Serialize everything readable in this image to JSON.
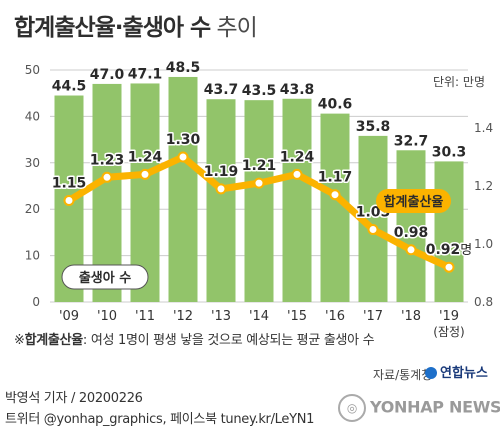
{
  "title": {
    "main": "합계출산율·출생아 수",
    "suffix": " 추이"
  },
  "unit_label": "단위: 만명",
  "note": {
    "prefix": "※",
    "term": "합계출산율",
    "text": ": 여성 1명이 평생 낳을 것으로 예상되는 평균 출생아 수"
  },
  "source": "자료/통계청",
  "credit": {
    "line1": "박영석 기자 / 20200226",
    "line2": "트위터 @yonhap_graphics, 페이스북 tuney.kr/LeYN1"
  },
  "logo": "연합뉴스",
  "watermark": "YONHAP NEWS",
  "colors": {
    "bar": "#92c46a",
    "line": "#fbb300",
    "point": "#ffffff",
    "grid": "#cccccc",
    "label_bg": "#fbb300"
  },
  "chart_data": {
    "type": "bar+line",
    "categories": [
      "'09",
      "'10",
      "'11",
      "'12",
      "'13",
      "'14",
      "'15",
      "'16",
      "'17",
      "'18",
      "'19"
    ],
    "category_note": "(잠정)",
    "series": [
      {
        "name": "출생아 수",
        "type": "bar",
        "axis": "left",
        "values": [
          44.5,
          47.0,
          47.1,
          48.5,
          43.7,
          43.5,
          43.8,
          40.6,
          35.8,
          32.7,
          30.3
        ],
        "labels": [
          "44.5",
          "47.0",
          "47.1",
          "48.5",
          "43.7",
          "43.5",
          "43.8",
          "40.6",
          "35.8",
          "32.7",
          "30.3"
        ]
      },
      {
        "name": "합계출산율",
        "type": "line",
        "axis": "right",
        "values": [
          1.15,
          1.23,
          1.24,
          1.3,
          1.19,
          1.21,
          1.24,
          1.17,
          1.05,
          0.98,
          0.92
        ],
        "labels": [
          "1.15",
          "1.23",
          "1.24",
          "1.30",
          "1.19",
          "1.21",
          "1.24",
          "1.17",
          "1.05",
          "0.98",
          "0.92"
        ],
        "last_label_suffix": "명"
      }
    ],
    "left_axis": {
      "ticks": [
        0,
        10,
        20,
        30,
        40,
        50
      ],
      "tick_labels": [
        "0",
        "10",
        "20",
        "30",
        "40",
        "50"
      ],
      "ylim": [
        0,
        50
      ]
    },
    "right_axis": {
      "ticks": [
        0.8,
        1.0,
        1.2,
        1.4
      ],
      "tick_labels": [
        "0.8",
        "1.0",
        "1.2",
        "1.4"
      ],
      "ylim": [
        0.8,
        1.6
      ]
    },
    "grid": true
  }
}
